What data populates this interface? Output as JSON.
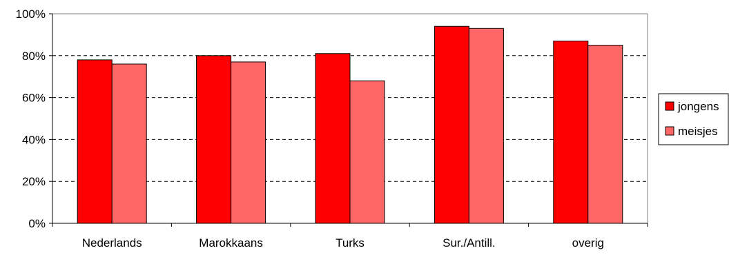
{
  "chart_data": {
    "type": "bar",
    "categories": [
      "Nederlands",
      "Marokkaans",
      "Turks",
      "Sur./Antill.",
      "overig"
    ],
    "series": [
      {
        "name": "jongens",
        "color": "#ff0000",
        "values": [
          78,
          80,
          81,
          94,
          87
        ]
      },
      {
        "name": "meisjes",
        "color": "#ff6666",
        "values": [
          76,
          77,
          68,
          93,
          85
        ]
      }
    ],
    "ylim": [
      0,
      100
    ],
    "yticks": [
      0,
      20,
      40,
      60,
      80,
      100
    ],
    "ytick_labels": [
      "0%",
      "20%",
      "40%",
      "60%",
      "80%",
      "100%"
    ],
    "grid": true,
    "legend": "right"
  }
}
